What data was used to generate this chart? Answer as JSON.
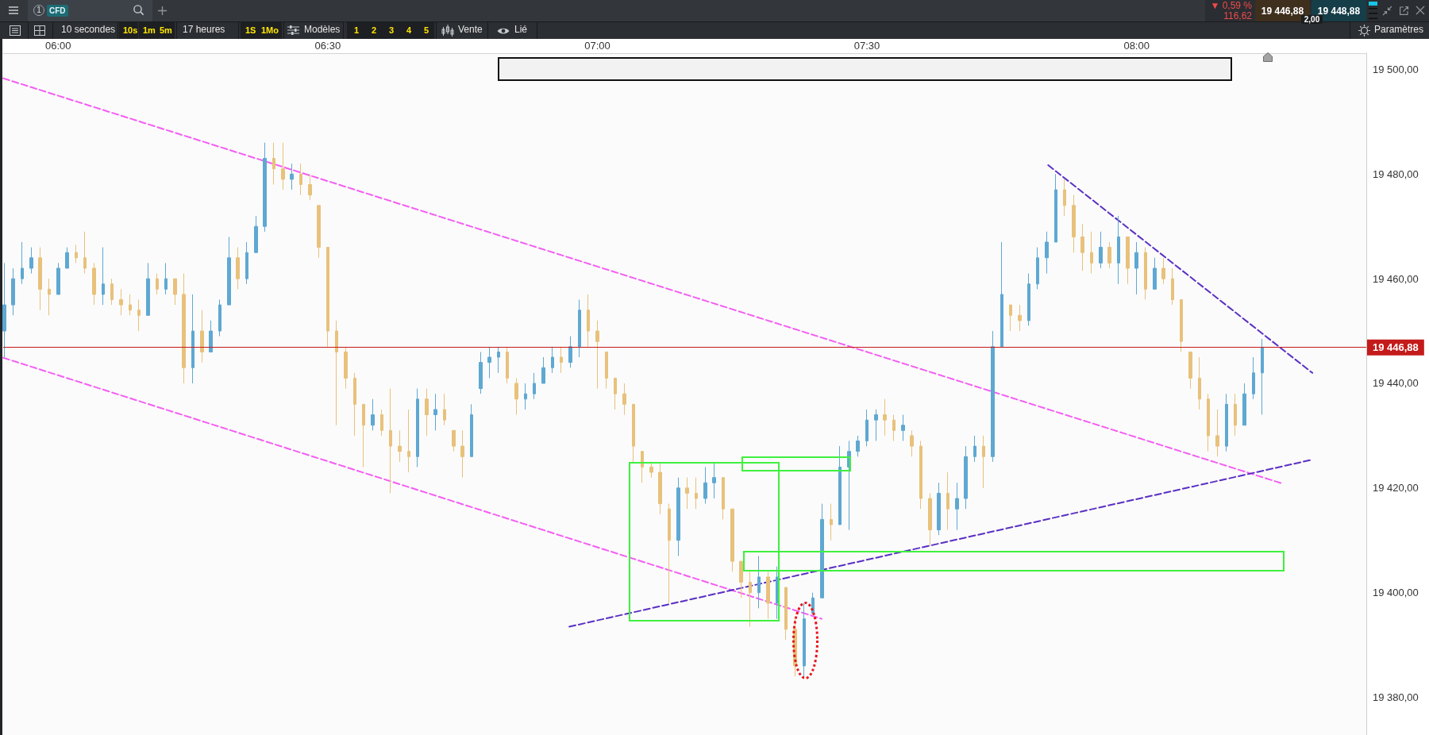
{
  "chart_data": {
    "type": "candlestick",
    "xlim": [
      5.898,
      8.426
    ],
    "xticks": [
      {
        "value": 6,
        "label": "06:00"
      },
      {
        "value": 6.5,
        "label": "06:30"
      },
      {
        "value": 7,
        "label": "07:00"
      },
      {
        "value": 7.5,
        "label": "07:30"
      },
      {
        "value": 8,
        "label": "08:00"
      }
    ],
    "ylim": [
      19372.8,
      19503.1
    ],
    "yticks": [
      {
        "value": 19380,
        "label": "19 380,00"
      },
      {
        "value": 19400,
        "label": "19 400,00"
      },
      {
        "value": 19420,
        "label": "19 420,00"
      },
      {
        "value": 19440,
        "label": "19 440,00"
      },
      {
        "value": 19460,
        "label": "19 460,00"
      },
      {
        "value": 19480,
        "label": "19 480,00"
      },
      {
        "value": 19500,
        "label": "19 500,00"
      }
    ],
    "series": [
      {
        "x": [
          5.9,
          5.9167,
          5.9333,
          5.95,
          5.9667,
          5.9833,
          6,
          6.0167,
          6.0333,
          6.05,
          6.0667,
          6.0833,
          6.1,
          6.1167,
          6.1333,
          6.15,
          6.1667,
          6.1833,
          6.2,
          6.2167,
          6.2333,
          6.25,
          6.2667,
          6.2833,
          6.3,
          6.3167,
          6.3333,
          6.35,
          6.3667,
          6.3833,
          6.4,
          6.4167,
          6.4333,
          6.45,
          6.4667,
          6.4833,
          6.5,
          6.5167,
          6.5333,
          6.55,
          6.5667,
          6.5833,
          6.6,
          6.6167,
          6.6333,
          6.65,
          6.6667,
          6.6833,
          6.7,
          6.7167,
          6.7333,
          6.75,
          6.7667,
          6.7833,
          6.8,
          6.8167,
          6.8333,
          6.85,
          6.8667,
          6.8833,
          6.9,
          6.9167,
          6.9333,
          6.95,
          6.9667,
          6.9833,
          7,
          7.0167,
          7.0333,
          7.05,
          7.0667,
          7.0833,
          7.1,
          7.1167,
          7.1333,
          7.15,
          7.1667,
          7.1833,
          7.2,
          7.2167,
          7.2333,
          7.25,
          7.2667,
          7.2833,
          7.3,
          7.3167,
          7.3333,
          7.35,
          7.3667,
          7.3833,
          7.4,
          7.4167,
          7.4333,
          7.45,
          7.4667,
          7.4833,
          7.5,
          7.5167,
          7.5333,
          7.55,
          7.5667,
          7.5833,
          7.6,
          7.6167,
          7.6333,
          7.65,
          7.6667,
          7.6833,
          7.7,
          7.7167,
          7.7333,
          7.75,
          7.7667,
          7.7833,
          7.8,
          7.8167,
          7.8333,
          7.85,
          7.8667,
          7.8833,
          7.9,
          7.9167,
          7.9333,
          7.95,
          7.9667,
          7.9833,
          8,
          8.0167,
          8.0333,
          8.05,
          8.0667,
          8.0833,
          8.1,
          8.1167,
          8.1333,
          8.15,
          8.1667,
          8.1833,
          8.2,
          8.2167,
          8.2333
        ],
        "ohlc": [
          [
            19450,
            19463,
            19445,
            19455
          ],
          [
            19455,
            19462,
            19453,
            19460
          ],
          [
            19460,
            19467,
            19459,
            19462
          ],
          [
            19462,
            19466,
            19461,
            19464
          ],
          [
            19464,
            19466,
            19454,
            19458
          ],
          [
            19458,
            19460,
            19453,
            19457
          ],
          [
            19457,
            19463,
            19457,
            19462
          ],
          [
            19462,
            19466,
            19462,
            19465
          ],
          [
            19465,
            19466.5,
            19463,
            19464
          ],
          [
            19464,
            19469,
            19461,
            19462
          ],
          [
            19462,
            19463,
            19455,
            19457
          ],
          [
            19457,
            19466,
            19455,
            19459
          ],
          [
            19459,
            19460,
            19455,
            19456
          ],
          [
            19456,
            19458,
            19453,
            19455
          ],
          [
            19455,
            19457,
            19453,
            19454
          ],
          [
            19454,
            19456,
            19450,
            19453
          ],
          [
            19453,
            19463,
            19453,
            19460
          ],
          [
            19460,
            19461,
            19457,
            19458
          ],
          [
            19458,
            19463,
            19457,
            19460
          ],
          [
            19460,
            19460,
            19455,
            19457
          ],
          [
            19457,
            19461,
            19440,
            19443
          ],
          [
            19443,
            19457,
            19440,
            19450
          ],
          [
            19450,
            19454,
            19444,
            19446
          ],
          [
            19446,
            19452,
            19446,
            19450
          ],
          [
            19450,
            19456,
            19449,
            19455
          ],
          [
            19455,
            19468,
            19455,
            19464
          ],
          [
            19464,
            19466,
            19458,
            19460
          ],
          [
            19460,
            19467,
            19459,
            19465
          ],
          [
            19465,
            19472,
            19465,
            19470
          ],
          [
            19470,
            19486,
            19469,
            19483
          ],
          [
            19483,
            19486,
            19478,
            19481
          ],
          [
            19481,
            19486,
            19477,
            19479
          ],
          [
            19479,
            19482,
            19477,
            19480
          ],
          [
            19480,
            19482,
            19476,
            19478
          ],
          [
            19478,
            19480,
            19475,
            19476
          ],
          [
            19474,
            19474,
            19464,
            19466
          ],
          [
            19466,
            19466,
            19447,
            19450
          ],
          [
            19450,
            19452,
            19432,
            19446
          ],
          [
            19446,
            19447,
            19439,
            19441
          ],
          [
            19441,
            19442,
            19430,
            19436
          ],
          [
            19436,
            19436,
            19424,
            19432
          ],
          [
            19432,
            19437,
            19431,
            19434
          ],
          [
            19434,
            19435,
            19430,
            19431
          ],
          [
            19431,
            19439,
            19419,
            19428
          ],
          [
            19428,
            19431,
            19425,
            19427
          ],
          [
            19427,
            19435,
            19423,
            19426
          ],
          [
            19426,
            19439,
            19424,
            19437
          ],
          [
            19437,
            19439,
            19430,
            19434
          ],
          [
            19434,
            19438,
            19431,
            19435
          ],
          [
            19435,
            19438,
            19432,
            19433
          ],
          [
            19431,
            19431,
            19427,
            19428
          ],
          [
            19428,
            19431,
            19422,
            19426
          ],
          [
            19426,
            19436,
            19426,
            19434
          ],
          [
            19439,
            19446,
            19438,
            19444
          ],
          [
            19444,
            19447,
            19441,
            19445
          ],
          [
            19445,
            19447,
            19442,
            19446
          ],
          [
            19446,
            19447,
            19440,
            19441
          ],
          [
            19440,
            19441,
            19434,
            19437
          ],
          [
            19437,
            19440,
            19435,
            19438
          ],
          [
            19438,
            19442,
            19437,
            19440
          ],
          [
            19440,
            19445,
            19440,
            19443
          ],
          [
            19443,
            19447,
            19442,
            19445
          ],
          [
            19445,
            19447,
            19442,
            19444
          ],
          [
            19444,
            19449,
            19443,
            19447
          ],
          [
            19447,
            19456,
            19445,
            19454
          ],
          [
            19454,
            19457,
            19447,
            19450
          ],
          [
            19450,
            19452,
            19439,
            19448
          ],
          [
            19446,
            19446,
            19439,
            19441
          ],
          [
            19441,
            19441,
            19435,
            19438
          ],
          [
            19438,
            19440,
            19434,
            19436
          ],
          [
            19436,
            19436,
            19425,
            19428
          ],
          [
            19427,
            19427,
            19421,
            19424
          ],
          [
            19424,
            19425,
            19422,
            19423
          ],
          [
            19423,
            19425,
            19415,
            19417
          ],
          [
            19416,
            19417,
            19398,
            19410
          ],
          [
            19410,
            19422,
            19407,
            19420
          ],
          [
            19420,
            19422,
            19416,
            19419
          ],
          [
            19419,
            19422,
            19416,
            19418
          ],
          [
            19418,
            19424,
            19417,
            19421
          ],
          [
            19421,
            19425,
            19418,
            19422
          ],
          [
            19422,
            19422,
            19414,
            19416
          ],
          [
            19416,
            19416,
            19404,
            19406
          ],
          [
            19406,
            19406,
            19399,
            19402
          ],
          [
            19402,
            19404,
            19393.5,
            19400
          ],
          [
            19400,
            19407,
            19397,
            19403
          ],
          [
            19403,
            19404,
            19395,
            19398
          ],
          [
            19398,
            19405,
            19395,
            19403
          ],
          [
            19401,
            19401,
            19391,
            19393
          ],
          [
            19393,
            19395,
            19384,
            19386
          ],
          [
            19386,
            19398,
            19384,
            19395
          ],
          [
            19396,
            19400,
            19396,
            19399
          ],
          [
            19399,
            19417,
            19399,
            19414
          ],
          [
            19414,
            19417,
            19410,
            19413
          ],
          [
            19413,
            19428,
            19413,
            19424
          ],
          [
            19424,
            19429,
            19412,
            19427
          ],
          [
            19427,
            19430,
            19426,
            19429
          ],
          [
            19429,
            19435,
            19428,
            19433
          ],
          [
            19433,
            19435,
            19429,
            19434
          ],
          [
            19434,
            19437,
            19430,
            19433
          ],
          [
            19433,
            19434,
            19429,
            19431
          ],
          [
            19431,
            19434,
            19429,
            19432
          ],
          [
            19430,
            19431,
            19426,
            19428
          ],
          [
            19428,
            19429,
            19416,
            19418
          ],
          [
            19418,
            19419,
            19409,
            19412
          ],
          [
            19412,
            19421,
            19411,
            19419
          ],
          [
            19419,
            19423,
            19412,
            19416
          ],
          [
            19416,
            19421,
            19412,
            19418
          ],
          [
            19418,
            19428,
            19416,
            19426
          ],
          [
            19426,
            19430,
            19425,
            19428
          ],
          [
            19428,
            19430,
            19420,
            19426
          ],
          [
            19426,
            19450,
            19425,
            19447
          ],
          [
            19447,
            19467,
            19447,
            19457
          ],
          [
            19455,
            19455,
            19450,
            19453
          ],
          [
            19453,
            19455,
            19450,
            19452
          ],
          [
            19452,
            19461,
            19451,
            19459
          ],
          [
            19459,
            19466,
            19458,
            19464
          ],
          [
            19464,
            19469,
            19461,
            19467
          ],
          [
            19467,
            19480,
            19467,
            19477
          ],
          [
            19477,
            19479,
            19472,
            19474
          ],
          [
            19474,
            19476,
            19465,
            19468
          ],
          [
            19468,
            19470.5,
            19461.5,
            19465
          ],
          [
            19465,
            19469,
            19461,
            19463
          ],
          [
            19463,
            19469,
            19462,
            19466
          ],
          [
            19466,
            19467,
            19462,
            19463
          ],
          [
            19463,
            19472,
            19459,
            19468
          ],
          [
            19468,
            19468,
            19459,
            19462
          ],
          [
            19462,
            19467,
            19457,
            19465
          ],
          [
            19465,
            19466,
            19456,
            19458
          ],
          [
            19458,
            19464,
            19458,
            19462
          ],
          [
            19462,
            19464,
            19459,
            19460
          ],
          [
            19460,
            19462,
            19455,
            19456
          ],
          [
            19456,
            19456,
            19446,
            19448
          ],
          [
            19446,
            19446,
            19439,
            19441
          ],
          [
            19441,
            19445,
            19435,
            19437
          ],
          [
            19437,
            19438,
            19427,
            19430
          ],
          [
            19430,
            19435,
            19426,
            19428
          ],
          [
            19428,
            19438,
            19427,
            19436
          ],
          [
            19436,
            19438,
            19430,
            19432
          ],
          [
            19432,
            19440,
            19432,
            19438
          ],
          [
            19438,
            19445,
            19437,
            19442
          ],
          [
            19442,
            19448.5,
            19434,
            19446.88
          ]
        ],
        "colors": [
          "#5ea8d2",
          "#5ea8d2",
          "#5ea8d2",
          "#5ea8d2",
          "#e8c17b",
          "#e8c17b",
          "#5ea8d2",
          "#5ea8d2",
          "#e8c17b",
          "#e8c17b",
          "#e8c17b",
          "#5ea8d2",
          "#e8c17b",
          "#e8c17b",
          "#e8c17b",
          "#e8c17b",
          "#5ea8d2",
          "#e8c17b",
          "#5ea8d2",
          "#e8c17b",
          "#e8c17b",
          "#5ea8d2",
          "#e8c17b",
          "#5ea8d2",
          "#5ea8d2",
          "#5ea8d2",
          "#e8c17b",
          "#5ea8d2",
          "#5ea8d2",
          "#5ea8d2",
          "#e8c17b",
          "#e8c17b",
          "#5ea8d2",
          "#e8c17b",
          "#e8c17b",
          "#e8c17b",
          "#e8c17b",
          "#e8c17b",
          "#e8c17b",
          "#e8c17b",
          "#e8c17b",
          "#5ea8d2",
          "#e8c17b",
          "#e8c17b",
          "#e8c17b",
          "#e8c17b",
          "#5ea8d2",
          "#e8c17b",
          "#5ea8d2",
          "#e8c17b",
          "#e8c17b",
          "#e8c17b",
          "#5ea8d2",
          "#5ea8d2",
          "#5ea8d2",
          "#5ea8d2",
          "#e8c17b",
          "#e8c17b",
          "#5ea8d2",
          "#5ea8d2",
          "#5ea8d2",
          "#5ea8d2",
          "#e8c17b",
          "#5ea8d2",
          "#5ea8d2",
          "#e8c17b",
          "#e8c17b",
          "#e8c17b",
          "#e8c17b",
          "#e8c17b",
          "#e8c17b",
          "#e8c17b",
          "#e8c17b",
          "#e8c17b",
          "#e8c17b",
          "#5ea8d2",
          "#e8c17b",
          "#e8c17b",
          "#5ea8d2",
          "#5ea8d2",
          "#e8c17b",
          "#e8c17b",
          "#e8c17b",
          "#e8c17b",
          "#5ea8d2",
          "#e8c17b",
          "#5ea8d2",
          "#e8c17b",
          "#e8c17b",
          "#5ea8d2",
          "#5ea8d2",
          "#5ea8d2",
          "#e8c17b",
          "#5ea8d2",
          "#5ea8d2",
          "#5ea8d2",
          "#5ea8d2",
          "#5ea8d2",
          "#e8c17b",
          "#e8c17b",
          "#5ea8d2",
          "#e8c17b",
          "#e8c17b",
          "#e8c17b",
          "#5ea8d2",
          "#e8c17b",
          "#5ea8d2",
          "#5ea8d2",
          "#5ea8d2",
          "#e8c17b",
          "#5ea8d2",
          "#5ea8d2",
          "#e8c17b",
          "#e8c17b",
          "#5ea8d2",
          "#5ea8d2",
          "#5ea8d2",
          "#5ea8d2",
          "#e8c17b",
          "#e8c17b",
          "#e8c17b",
          "#e8c17b",
          "#5ea8d2",
          "#e8c17b",
          "#5ea8d2",
          "#e8c17b",
          "#5ea8d2",
          "#e8c17b",
          "#5ea8d2",
          "#e8c17b",
          "#e8c17b",
          "#e8c17b",
          "#e8c17b",
          "#e8c17b",
          "#e8c17b",
          "#e8c17b",
          "#5ea8d2",
          "#e8c17b",
          "#5ea8d2",
          "#5ea8d2",
          "#5ea8d2"
        ]
      },
      {
        "type": "line",
        "color": "#f45ef4",
        "line_style": "dashed",
        "x": [
          5.898,
          8.269
        ],
        "values": [
          19498.3,
          19420.9
        ]
      },
      {
        "type": "line",
        "color": "#f45ef4",
        "line_style": "dashed",
        "x": [
          5.898,
          7.416
        ],
        "values": [
          19444.9,
          19395.0
        ]
      },
      {
        "type": "line",
        "color": "#5a2fc4",
        "line_style": "dashed",
        "x": [
          6.948,
          8.325
        ],
        "values": [
          19393.5,
          19425.4
        ]
      },
      {
        "type": "line",
        "color": "#5a2fc4",
        "line_style": "dashed",
        "x": [
          7.836,
          8.326
        ],
        "values": [
          19481.7,
          19442.0
        ]
      }
    ],
    "ref_lines": [
      {
        "axis": "y",
        "value": 19446.88,
        "label": "19 446,88",
        "color": "#c41a1a"
      }
    ],
    "annotations": [
      "1",
      "CFD",
      "10 secondes",
      "10s",
      "1m",
      "5m",
      "17 heures",
      "1S",
      "1Mo",
      "Modèles",
      "1",
      "2",
      "3",
      "4",
      "5",
      "Vente",
      "Lié",
      "Paramètres",
      "▼ 0,59 %",
      "116,62",
      "19 446,88",
      "19 448,88",
      "2,00"
    ]
  }
}
